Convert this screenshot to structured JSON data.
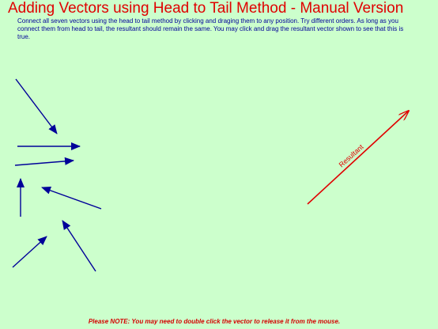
{
  "title": "Adding Vectors using Head to Tail Method - Manual Version",
  "instructions": "Connect all seven vectors using the head to tail method by clicking and draging them to any position.  Try different orders.  As long as you connect them from head to tail, the resultant should remain the same.  You may click and drag the resultant vector shown to see that this is true.",
  "resultant_label": "Resultant",
  "note": "Please NOTE: You may need to double click the vector to release it from the mouse.",
  "colors": {
    "background": "#ccffcc",
    "title": "#e00000",
    "vector": "#000099",
    "resultant": "#e00000"
  }
}
